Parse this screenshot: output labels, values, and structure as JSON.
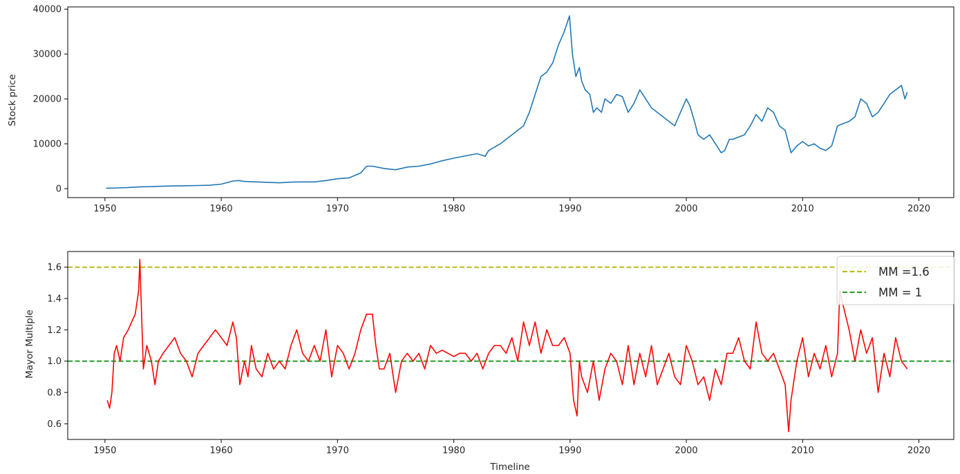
{
  "chart_data": [
    {
      "type": "line",
      "xlabel": "",
      "ylabel": "Stock price",
      "xlim": [
        1946.8,
        1953.0
      ],
      "ylim": [
        -2000,
        40500
      ],
      "xticks": [
        1950,
        1960,
        1970,
        1980,
        1990,
        2000,
        2010,
        2020
      ],
      "yticks": [
        0,
        10000,
        20000,
        30000,
        40000
      ],
      "grid": false,
      "series": [
        {
          "color": "#1f77b4",
          "x": [
            1950.1,
            1951.0,
            1952.0,
            1953.0,
            1954.0,
            1955.0,
            1956.0,
            1957.0,
            1958.0,
            1959.0,
            1960.0,
            1961.0,
            1961.5,
            1962.0,
            1963.0,
            1964.0,
            1965.0,
            1966.0,
            1967.0,
            1968.0,
            1969.0,
            1970.0,
            1971.0,
            1972.0,
            1972.5,
            1973.0,
            1974.0,
            1975.0,
            1976.0,
            1977.0,
            1978.0,
            1979.0,
            1980.0,
            1981.0,
            1982.0,
            1982.7,
            1983.0,
            1984.0,
            1985.0,
            1986.0,
            1986.5,
            1987.0,
            1987.5,
            1988.0,
            1988.5,
            1989.0,
            1989.5,
            1989.95,
            1990.2,
            1990.5,
            1990.8,
            1991.0,
            1991.3,
            1991.7,
            1992.0,
            1992.3,
            1992.7,
            1993.0,
            1993.5,
            1994.0,
            1994.5,
            1995.0,
            1995.5,
            1996.0,
            1996.5,
            1997.0,
            1997.5,
            1998.0,
            1998.5,
            1999.0,
            1999.5,
            2000.0,
            2000.3,
            2000.7,
            2001.0,
            2001.5,
            2002.0,
            2002.5,
            2003.0,
            2003.3,
            2003.7,
            2004.0,
            2004.5,
            2005.0,
            2005.5,
            2006.0,
            2006.5,
            2007.0,
            2007.5,
            2008.0,
            2008.5,
            2008.8,
            2009.0,
            2009.5,
            2010.0,
            2010.5,
            2011.0,
            2011.5,
            2012.0,
            2012.5,
            2013.0,
            2013.5,
            2014.0,
            2014.5,
            2015.0,
            2015.5,
            2016.0,
            2016.5,
            2017.0,
            2017.5,
            2018.0,
            2018.5,
            2018.8,
            2019.0
          ],
          "y": [
            100,
            150,
            250,
            400,
            450,
            550,
            600,
            650,
            700,
            750,
            1000,
            1700,
            1800,
            1600,
            1500,
            1400,
            1300,
            1450,
            1500,
            1500,
            1800,
            2200,
            2400,
            3500,
            5000,
            5000,
            4500,
            4200,
            4800,
            5000,
            5500,
            6200,
            6800,
            7300,
            7800,
            7200,
            8500,
            10000,
            12000,
            14000,
            17000,
            21000,
            25000,
            26000,
            28000,
            32000,
            35000,
            38500,
            30000,
            25000,
            27000,
            24000,
            22000,
            21000,
            17000,
            18000,
            17000,
            20000,
            19000,
            21000,
            20500,
            17000,
            19000,
            22000,
            20000,
            18000,
            17000,
            16000,
            15000,
            14000,
            17000,
            20000,
            18500,
            15000,
            12000,
            11000,
            12000,
            10000,
            8000,
            8500,
            11000,
            11000,
            11500,
            12000,
            14000,
            16500,
            15000,
            18000,
            17000,
            14000,
            13000,
            10000,
            8000,
            9500,
            10500,
            9500,
            10000,
            9000,
            8500,
            9500,
            14000,
            14500,
            15000,
            16000,
            20000,
            19000,
            16000,
            17000,
            19000,
            21000,
            22000,
            23000,
            20000,
            21500
          ]
        }
      ]
    },
    {
      "type": "line",
      "xlabel": "Timeline",
      "ylabel": "Mayor Multiple",
      "xlim": [
        1946.8,
        2023.0
      ],
      "ylim": [
        0.5,
        1.7
      ],
      "xticks": [
        1950,
        1960,
        1970,
        1980,
        1990,
        2000,
        2010,
        2020
      ],
      "yticks": [
        0.6,
        0.8,
        1.0,
        1.2,
        1.4,
        1.6
      ],
      "grid": false,
      "legend_position": "top-right",
      "hlines": [
        {
          "name": "MM =1.6",
          "y": 1.6,
          "color": "#bcbd22"
        },
        {
          "name": "MM = 1",
          "y": 1.0,
          "color": "#2ca02c"
        }
      ],
      "series": [
        {
          "color": "#ff0000",
          "x": [
            1950.2,
            1950.4,
            1950.6,
            1950.8,
            1951.0,
            1951.3,
            1951.6,
            1952.0,
            1952.3,
            1952.6,
            1952.9,
            1953.0,
            1953.3,
            1953.6,
            1954.0,
            1954.3,
            1954.6,
            1955.0,
            1955.5,
            1956.0,
            1956.5,
            1957.0,
            1957.5,
            1958.0,
            1958.5,
            1959.0,
            1959.5,
            1960.0,
            1960.5,
            1961.0,
            1961.3,
            1961.6,
            1962.0,
            1962.3,
            1962.6,
            1963.0,
            1963.5,
            1964.0,
            1964.5,
            1965.0,
            1965.5,
            1966.0,
            1966.5,
            1967.0,
            1967.5,
            1968.0,
            1968.5,
            1969.0,
            1969.5,
            1970.0,
            1970.5,
            1971.0,
            1971.5,
            1972.0,
            1972.5,
            1973.0,
            1973.3,
            1973.6,
            1974.0,
            1974.5,
            1975.0,
            1975.5,
            1976.0,
            1976.5,
            1977.0,
            1977.5,
            1978.0,
            1978.5,
            1979.0,
            1979.5,
            1980.0,
            1980.5,
            1981.0,
            1981.5,
            1982.0,
            1982.5,
            1983.0,
            1983.5,
            1984.0,
            1984.5,
            1985.0,
            1985.5,
            1986.0,
            1986.5,
            1987.0,
            1987.5,
            1988.0,
            1988.5,
            1989.0,
            1989.5,
            1990.0,
            1990.3,
            1990.6,
            1990.8,
            1991.0,
            1991.5,
            1992.0,
            1992.5,
            1993.0,
            1993.5,
            1994.0,
            1994.5,
            1995.0,
            1995.5,
            1996.0,
            1996.5,
            1997.0,
            1997.5,
            1998.0,
            1998.5,
            1999.0,
            1999.5,
            2000.0,
            2000.5,
            2001.0,
            2001.5,
            2002.0,
            2002.5,
            2003.0,
            2003.5,
            2004.0,
            2004.5,
            2005.0,
            2005.5,
            2006.0,
            2006.5,
            2007.0,
            2007.5,
            2008.0,
            2008.5,
            2008.8,
            2009.0,
            2009.5,
            2010.0,
            2010.5,
            2011.0,
            2011.5,
            2012.0,
            2012.5,
            2013.0,
            2013.2,
            2013.5,
            2014.0,
            2014.5,
            2015.0,
            2015.5,
            2016.0,
            2016.5,
            2017.0,
            2017.5,
            2018.0,
            2018.5,
            2019.0
          ],
          "y": [
            0.75,
            0.7,
            0.8,
            1.05,
            1.1,
            1.0,
            1.15,
            1.2,
            1.25,
            1.3,
            1.45,
            1.65,
            0.95,
            1.1,
            1.0,
            0.85,
            1.0,
            1.05,
            1.1,
            1.15,
            1.05,
            1.0,
            0.9,
            1.05,
            1.1,
            1.15,
            1.2,
            1.15,
            1.1,
            1.25,
            1.15,
            0.85,
            1.0,
            0.9,
            1.1,
            0.95,
            0.9,
            1.05,
            0.95,
            1.0,
            0.95,
            1.1,
            1.2,
            1.05,
            1.0,
            1.1,
            1.0,
            1.2,
            0.9,
            1.1,
            1.05,
            0.95,
            1.05,
            1.2,
            1.3,
            1.3,
            1.1,
            0.95,
            0.95,
            1.05,
            0.8,
            1.0,
            1.05,
            1.0,
            1.05,
            0.95,
            1.1,
            1.05,
            1.07,
            1.05,
            1.03,
            1.05,
            1.05,
            1.0,
            1.05,
            0.95,
            1.05,
            1.1,
            1.1,
            1.05,
            1.15,
            1.0,
            1.25,
            1.1,
            1.25,
            1.05,
            1.2,
            1.1,
            1.1,
            1.15,
            1.05,
            0.75,
            0.65,
            1.0,
            0.9,
            0.8,
            1.0,
            0.75,
            0.95,
            1.05,
            1.0,
            0.85,
            1.1,
            0.85,
            1.05,
            0.9,
            1.1,
            0.85,
            0.95,
            1.05,
            0.9,
            0.85,
            1.1,
            1.0,
            0.85,
            0.9,
            0.75,
            0.95,
            0.85,
            1.05,
            1.05,
            1.15,
            1.0,
            0.95,
            1.25,
            1.05,
            1.0,
            1.05,
            0.95,
            0.85,
            0.55,
            0.75,
            1.0,
            1.15,
            0.9,
            1.05,
            0.95,
            1.1,
            0.9,
            1.05,
            1.45,
            1.35,
            1.2,
            1.0,
            1.2,
            1.05,
            1.15,
            0.8,
            1.05,
            0.9,
            1.15,
            1.0,
            0.95
          ]
        }
      ]
    }
  ],
  "legend": {
    "entries": [
      "MM =1.6",
      "MM = 1"
    ]
  }
}
